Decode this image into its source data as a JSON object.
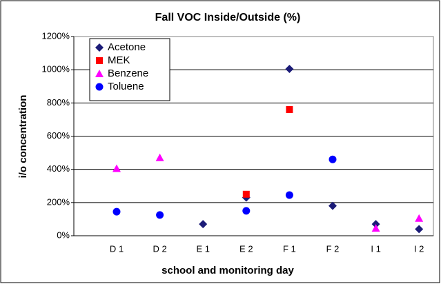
{
  "chart_data": {
    "type": "scatter",
    "title": "Fall VOC Inside/Outside (%)",
    "x_label": "school and monitoring day",
    "y_label": "i/o concentration",
    "categories": [
      "D 1",
      "D 2",
      "E 1",
      "E 2",
      "F 1",
      "F 2",
      "I 1",
      "I 2"
    ],
    "series": [
      {
        "name": "Acetone",
        "color": "#1c1c78",
        "marker": "diamond",
        "values": [
          null,
          null,
          70,
          230,
          1005,
          180,
          70,
          40
        ]
      },
      {
        "name": "MEK",
        "color": "#ff0000",
        "marker": "square",
        "values": [
          null,
          null,
          null,
          250,
          760,
          null,
          null,
          null
        ]
      },
      {
        "name": "Benzene",
        "color": "#ff00ff",
        "marker": "triangle",
        "values": [
          405,
          470,
          null,
          null,
          null,
          null,
          45,
          105
        ]
      },
      {
        "name": "Toluene",
        "color": "#0000ff",
        "marker": "circle",
        "values": [
          145,
          125,
          null,
          150,
          245,
          460,
          null,
          null
        ]
      }
    ],
    "ylim": [
      0,
      1200
    ],
    "yticks": [
      {
        "value": 0,
        "label": "0%"
      },
      {
        "value": 200,
        "label": "200%"
      },
      {
        "value": 400,
        "label": "400%"
      },
      {
        "value": 600,
        "label": "600%"
      },
      {
        "value": 800,
        "label": "800%"
      },
      {
        "value": 1000,
        "label": "1000%"
      },
      {
        "value": 1200,
        "label": "1200%"
      }
    ],
    "grid": true,
    "legend": "top-left"
  }
}
